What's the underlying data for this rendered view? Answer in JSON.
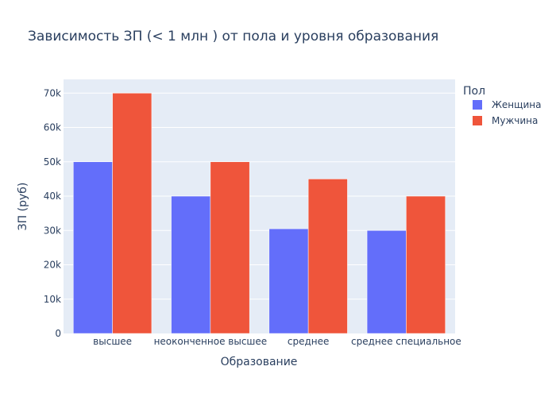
{
  "chart_data": {
    "type": "bar",
    "title": "Зависимость ЗП (< 1 млн ) от пола и уровня образования",
    "xlabel": "Образование",
    "ylabel": "ЗП (руб)",
    "categories": [
      "высшее",
      "неоконченное высшее",
      "среднее",
      "среднее специальное"
    ],
    "series": [
      {
        "name": "Женщина",
        "color": "#636efa",
        "values": [
          50000,
          40000,
          30500,
          30000
        ]
      },
      {
        "name": "Мужчина",
        "color": "#ef553b",
        "values": [
          70000,
          50000,
          45000,
          40000
        ]
      }
    ],
    "ylim": [
      0,
      74000
    ],
    "yticks": [
      0,
      10000,
      20000,
      30000,
      40000,
      50000,
      60000,
      70000
    ],
    "ytick_labels": [
      "0",
      "10k",
      "20k",
      "30k",
      "40k",
      "50k",
      "60k",
      "70k"
    ],
    "legend_title": "Пол",
    "legend_position": "top-right",
    "grid": true,
    "plot_background": "#e5ecf6"
  }
}
